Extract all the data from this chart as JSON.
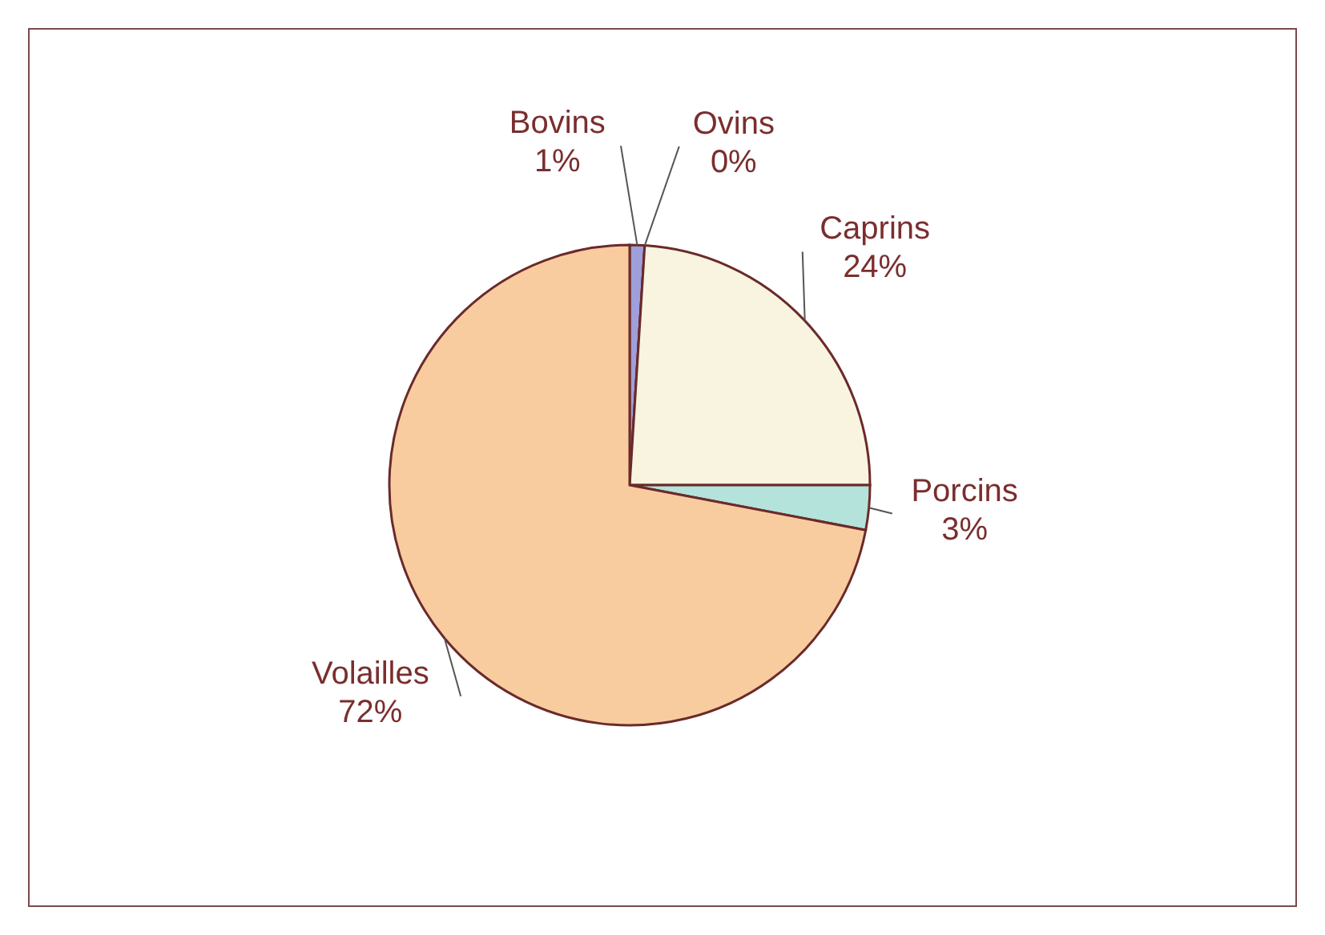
{
  "chart_data": {
    "type": "pie",
    "categories": [
      "Bovins",
      "Ovins",
      "Caprins",
      "Porcins",
      "Volailles"
    ],
    "values": [
      1,
      0,
      24,
      3,
      72
    ],
    "colors": [
      "#9f9fd9",
      "#ffffff",
      "#f8f4e0",
      "#b3e3da",
      "#f9cca0"
    ],
    "value_labels": [
      "1%",
      "0%",
      "24%",
      "3%",
      "72%"
    ]
  }
}
